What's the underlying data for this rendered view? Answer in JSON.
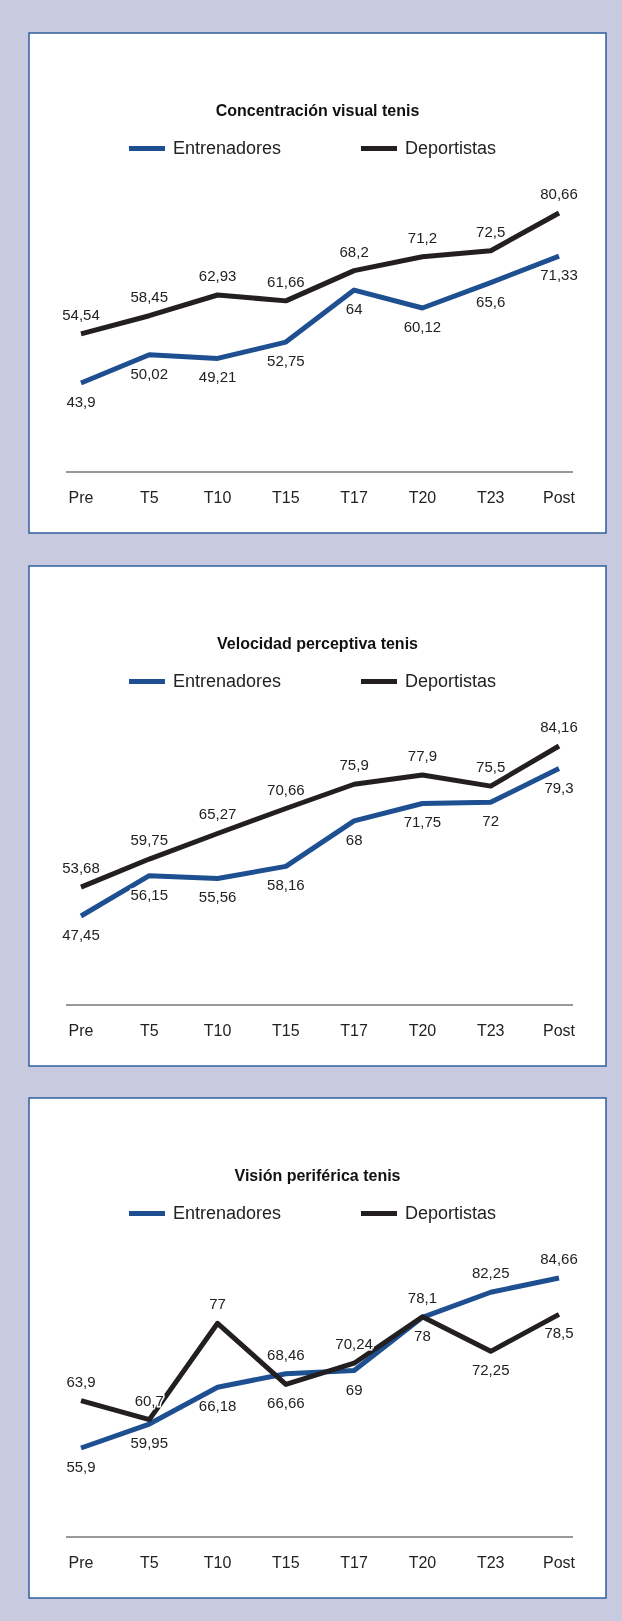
{
  "chart_data": [
    {
      "type": "line",
      "title": "Concentración visual tenis",
      "categories": [
        "Pre",
        "T5",
        "T10",
        "T15",
        "T17",
        "T20",
        "T23",
        "Post"
      ],
      "legend": "top",
      "marker": "none",
      "tick_labels": "x",
      "series": [
        {
          "name": "Entrenadores",
          "color": "#1d4f91",
          "values": [
            43.9,
            50.02,
            49.21,
            52.75,
            64,
            60.12,
            65.6,
            71.33
          ],
          "value_labels": [
            "43,9",
            "50,02",
            "49,21",
            "52,75",
            "64",
            "60,12",
            "65,6",
            "71,33"
          ]
        },
        {
          "name": "Deportistas",
          "color": "#231f20",
          "values": [
            54.54,
            58.45,
            62.93,
            61.66,
            68.2,
            71.2,
            72.5,
            80.66
          ],
          "value_labels": [
            "54,54",
            "58,45",
            "62,93",
            "61,66",
            "68,2",
            "71,2",
            "72,5",
            "80,66"
          ]
        }
      ]
    },
    {
      "type": "line",
      "title": "Velocidad perceptiva tenis",
      "categories": [
        "Pre",
        "T5",
        "T10",
        "T15",
        "T17",
        "T20",
        "T23",
        "Post"
      ],
      "legend": "top",
      "marker": "none",
      "tick_labels": "x",
      "series": [
        {
          "name": "Entrenadores",
          "color": "#1d4f91",
          "values": [
            47.45,
            56.15,
            55.56,
            58.16,
            68,
            71.75,
            72,
            79.3
          ],
          "value_labels": [
            "47,45",
            "56,15",
            "55,56",
            "58,16",
            "68",
            "71,75",
            "72",
            "79,3"
          ]
        },
        {
          "name": "Deportistas",
          "color": "#231f20",
          "values": [
            53.68,
            59.75,
            65.27,
            70.66,
            75.9,
            77.9,
            75.5,
            84.16
          ],
          "value_labels": [
            "53,68",
            "59,75",
            "65,27",
            "70,66",
            "75,9",
            "77,9",
            "75,5",
            "84,16"
          ]
        }
      ]
    },
    {
      "type": "line",
      "title": "Visión periférica tenis",
      "categories": [
        "Pre",
        "T5",
        "T10",
        "T15",
        "T17",
        "T20",
        "T23",
        "Post"
      ],
      "legend": "top",
      "marker": "none",
      "tick_labels": "x",
      "series": [
        {
          "name": "Entrenadores",
          "color": "#1d4f91",
          "values": [
            55.9,
            59.95,
            66.18,
            68.46,
            69,
            78,
            82.25,
            84.66
          ],
          "value_labels": [
            "55,9",
            "59,95",
            "66,18",
            "68,46",
            "69",
            "78",
            "82,25",
            "84,66"
          ]
        },
        {
          "name": "Deportistas",
          "color": "#231f20",
          "values": [
            63.9,
            60.7,
            77,
            66.66,
            70.24,
            78.1,
            72.25,
            78.5
          ],
          "value_labels": [
            "63,9",
            "60,7",
            "77",
            "66,66",
            "70,24",
            "78,1",
            "72,25",
            "78,5"
          ]
        }
      ]
    }
  ]
}
